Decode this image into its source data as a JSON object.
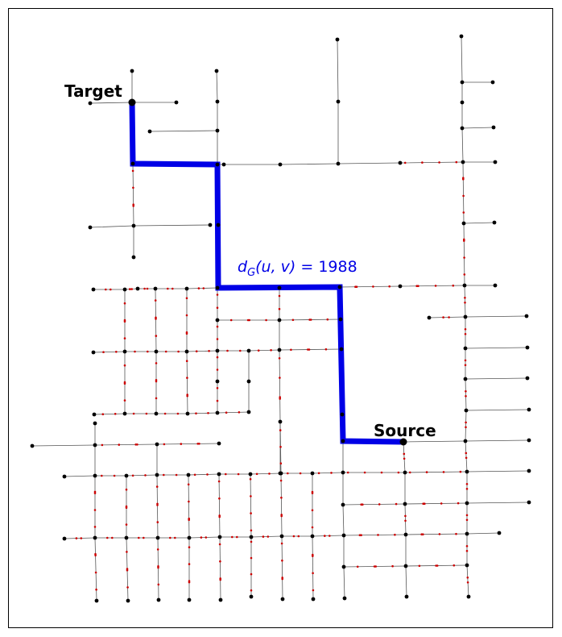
{
  "labels": {
    "target": "Target",
    "source": "Source"
  },
  "annotation": {
    "prefix": "d",
    "subscript": "G",
    "args": "(u, v)",
    "equals": " = ",
    "value": "1988"
  },
  "graph": {
    "path_length": 1988,
    "colors": {
      "path": "#0000e6",
      "annotation": "#0000e6",
      "edge": "#555555",
      "node": "#000000",
      "midnode": "#cc0000"
    }
  }
}
